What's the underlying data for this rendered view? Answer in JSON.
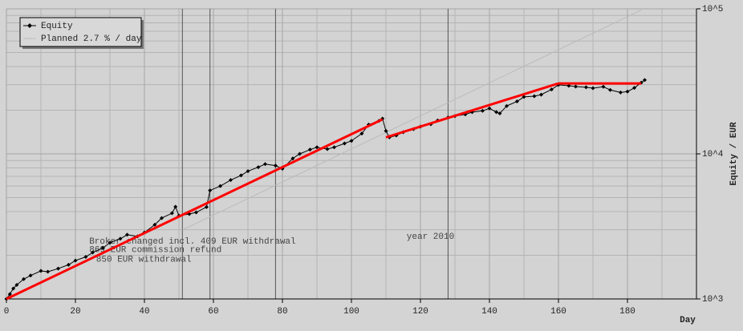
{
  "chart_data": {
    "type": "line",
    "xlabel": "Day",
    "ylabel": "Equity / EUR",
    "xlim": [
      0,
      200
    ],
    "xticks": [
      0,
      20,
      40,
      60,
      80,
      100,
      120,
      140,
      160,
      180
    ],
    "ylim": [
      1000,
      100000
    ],
    "log_y": true,
    "yticks": [
      {
        "value": 1000,
        "label": "10^3"
      },
      {
        "value": 10000,
        "label": "10^4"
      },
      {
        "value": 100000,
        "label": "10^5"
      }
    ],
    "grid": true,
    "minor_grid": true,
    "legend": "upper left",
    "series": [
      {
        "name": "Equity",
        "color": "#000000",
        "marker": "diamond",
        "x": [
          0,
          1,
          2,
          3,
          5,
          7,
          10,
          12,
          15,
          18,
          20,
          23,
          25,
          28,
          30,
          33,
          35,
          38,
          40,
          43,
          45,
          48,
          49,
          50,
          53,
          55,
          58,
          59,
          62,
          65,
          68,
          70,
          73,
          75,
          78,
          80,
          83,
          85,
          88,
          90,
          93,
          95,
          98,
          100,
          103,
          105,
          108,
          109,
          110,
          111,
          113,
          115,
          118,
          120,
          123,
          125,
          128,
          130,
          133,
          135,
          138,
          140,
          142,
          143,
          145,
          148,
          150,
          153,
          155,
          158,
          160,
          163,
          165,
          168,
          170,
          173,
          175,
          178,
          180,
          182,
          184,
          185
        ],
        "values": [
          1000,
          1080,
          1180,
          1250,
          1370,
          1450,
          1560,
          1540,
          1620,
          1720,
          1840,
          1950,
          2090,
          2250,
          2440,
          2600,
          2770,
          2700,
          2870,
          3250,
          3610,
          3900,
          4320,
          3750,
          3850,
          3950,
          4300,
          5600,
          6000,
          6600,
          7100,
          7600,
          8100,
          8500,
          8300,
          7900,
          9300,
          10000,
          10700,
          11100,
          10800,
          11100,
          11800,
          12300,
          13800,
          15900,
          16900,
          17500,
          14400,
          13000,
          13400,
          14100,
          14800,
          15400,
          16000,
          17000,
          17800,
          18200,
          18700,
          19400,
          19800,
          20600,
          19400,
          19000,
          21400,
          23000,
          24700,
          25000,
          25600,
          27800,
          29900,
          29500,
          29100,
          28800,
          28400,
          29000,
          27600,
          26500,
          26900,
          28500,
          31000,
          32300
        ]
      },
      {
        "name": "Planned 2.7 % / day",
        "color": "#bbbbbb",
        "x": [
          51,
          184
        ],
        "values": [
          2990,
          98000
        ]
      }
    ],
    "trend_lines": {
      "color": "#ff0000",
      "segments": [
        {
          "x": [
            0,
            109
          ],
          "values": [
            1000,
            17300
          ]
        },
        {
          "x": [
            110,
            160
          ],
          "values": [
            13000,
            30600
          ]
        },
        {
          "x": [
            160,
            184
          ],
          "values": [
            30600,
            30600
          ]
        }
      ]
    },
    "vlines": [
      51,
      59,
      78,
      128
    ],
    "annotations": [
      {
        "text": "Broker changed incl. 409 EUR withdrawal",
        "x": 24,
        "value": 2500
      },
      {
        "text": "869 EUR commission refund",
        "x": 24,
        "value": 2180
      },
      {
        "text": "850 EUR withdrawal",
        "x": 26,
        "value": 1870
      },
      {
        "text": "year 2010",
        "x": 116,
        "value": 2700
      }
    ]
  }
}
